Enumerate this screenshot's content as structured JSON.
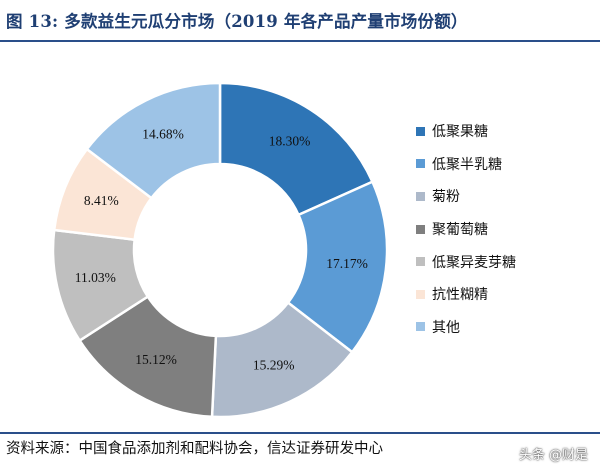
{
  "header": {
    "title": "图 13: 多款益生元瓜分市场（2019 年各产品产量市场份额）"
  },
  "footer": {
    "source": "资料来源：中国食品添加剂和配料协会，信达证券研发中心",
    "watermark": "头条 @财是"
  },
  "chart_data": {
    "type": "pie",
    "variant": "donut",
    "categories": [
      "低聚果糖",
      "低聚半乳糖",
      "菊粉",
      "聚葡萄糖",
      "低聚异麦芽糖",
      "抗性糊精",
      "其他"
    ],
    "values": [
      18.3,
      17.17,
      15.29,
      15.12,
      11.03,
      8.41,
      14.68
    ],
    "value_labels": [
      "18.30%",
      "17.17%",
      "15.29%",
      "15.12%",
      "11.03%",
      "8.41%",
      "14.68%"
    ],
    "colors": [
      "#2e75b6",
      "#5b9bd5",
      "#adb9ca",
      "#7f7f7f",
      "#bfbfbf",
      "#fbe5d6",
      "#9dc3e6"
    ],
    "legend_position": "right",
    "start_angle_deg": 0,
    "direction": "clockwise"
  }
}
